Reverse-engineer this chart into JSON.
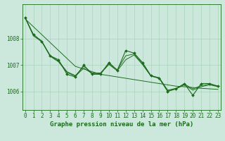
{
  "x": [
    0,
    1,
    2,
    3,
    4,
    5,
    6,
    7,
    8,
    9,
    10,
    11,
    12,
    13,
    14,
    15,
    16,
    17,
    18,
    19,
    20,
    21,
    22,
    23
  ],
  "series": {
    "instant": [
      1008.8,
      1008.15,
      1007.9,
      1007.35,
      1007.2,
      1006.65,
      1006.55,
      1007.0,
      1006.65,
      1006.65,
      1007.1,
      1006.8,
      1007.55,
      1007.45,
      1007.1,
      1006.6,
      1006.5,
      1006.0,
      1006.1,
      1006.3,
      1005.85,
      1006.3,
      1006.3,
      1006.2
    ],
    "smooth1": [
      1008.8,
      1008.15,
      1007.9,
      1007.35,
      1007.15,
      1006.75,
      1006.6,
      1006.95,
      1006.7,
      1006.7,
      1007.05,
      1006.82,
      1007.35,
      1007.42,
      1007.05,
      1006.6,
      1006.52,
      1006.05,
      1006.12,
      1006.28,
      1006.1,
      1006.22,
      1006.28,
      1006.2
    ],
    "smooth2": [
      1008.8,
      1008.1,
      1007.88,
      1007.33,
      1007.12,
      1006.72,
      1006.58,
      1006.88,
      1006.68,
      1006.68,
      1007.02,
      1006.78,
      1007.2,
      1007.38,
      1007.02,
      1006.58,
      1006.5,
      1006.02,
      1006.1,
      1006.25,
      1006.05,
      1006.18,
      1006.25,
      1006.18
    ],
    "trend": [
      1008.75,
      1008.45,
      1008.15,
      1007.85,
      1007.55,
      1007.25,
      1006.95,
      1006.85,
      1006.75,
      1006.65,
      1006.6,
      1006.55,
      1006.5,
      1006.45,
      1006.4,
      1006.35,
      1006.3,
      1006.25,
      1006.2,
      1006.18,
      1006.15,
      1006.12,
      1006.1,
      1006.08
    ]
  },
  "line_color": "#1a6b1a",
  "bg_color": "#cce8dd",
  "grid_color": "#aad4bb",
  "xlabel": "Graphe pression niveau de la mer (hPa)",
  "xlabel_color": "#1a6b1a",
  "ylabel_ticks": [
    1006,
    1007,
    1008
  ],
  "ylim": [
    1005.3,
    1009.3
  ],
  "xlim": [
    -0.3,
    23.3
  ],
  "marker": "D",
  "markersize": 2.0,
  "linewidth": 0.8,
  "tick_fontsize": 5.5,
  "xlabel_fontsize": 6.5
}
